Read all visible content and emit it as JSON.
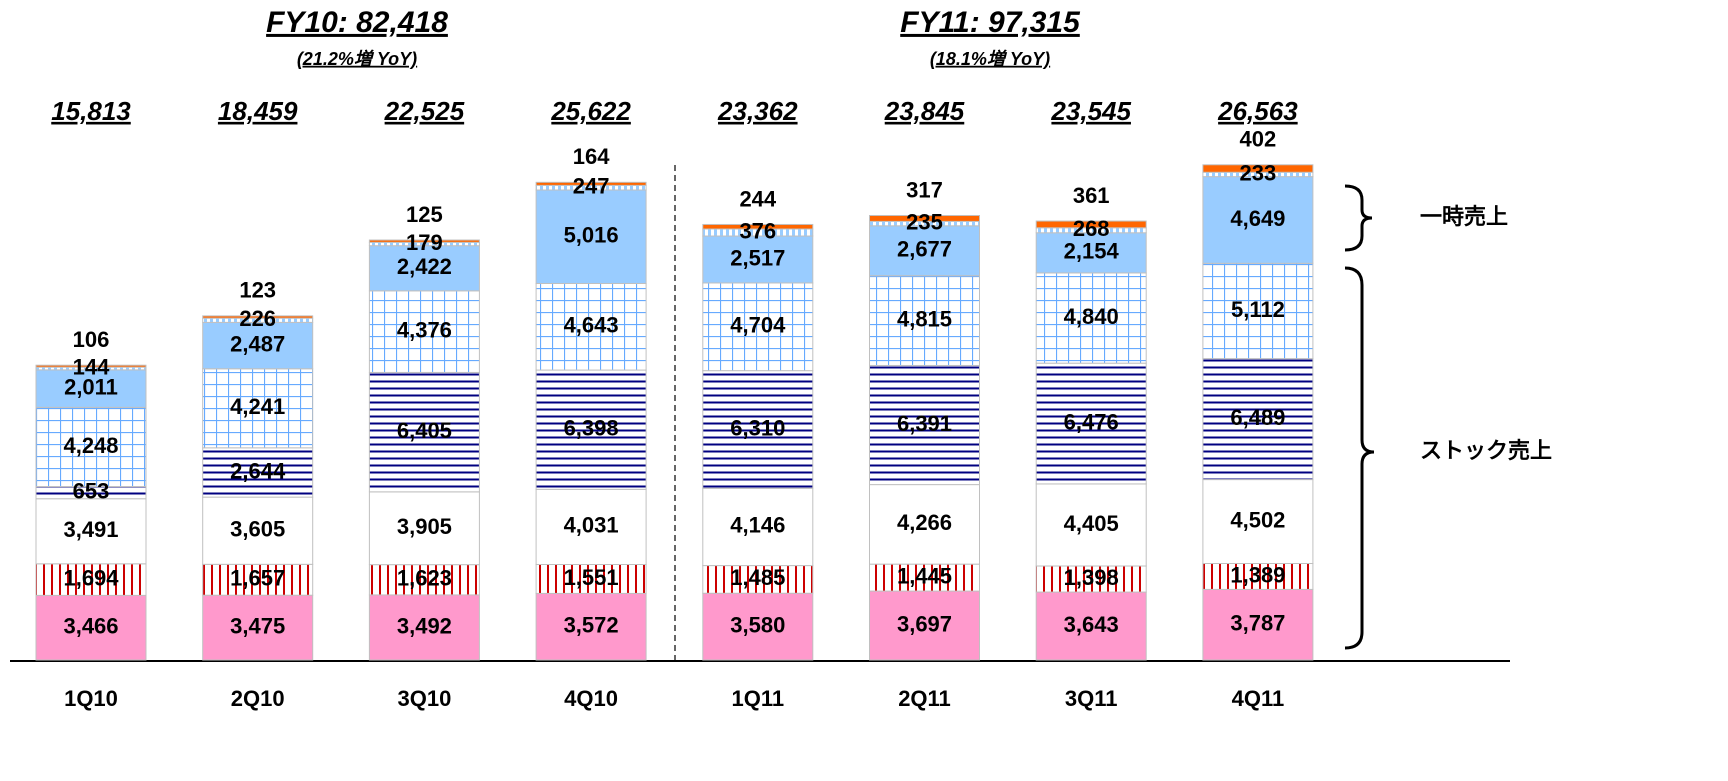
{
  "chart_data": {
    "type": "stacked_bar",
    "categories": [
      "1Q10",
      "2Q10",
      "3Q10",
      "4Q10",
      "1Q11",
      "2Q11",
      "3Q11",
      "4Q11"
    ],
    "ylim": [
      0,
      28000
    ],
    "annotations": [
      "FY10: 82,418",
      "(21.2%増 YoY)",
      "FY11: 97,315",
      "(18.1%増 YoY)",
      "一時売上",
      "ストック売上"
    ],
    "totals": [
      15813,
      18459,
      22525,
      25622,
      23362,
      23845,
      23545,
      26563
    ],
    "total_labels": [
      "15,813",
      "18,459",
      "22,525",
      "25,622",
      "23,362",
      "23,845",
      "23,545",
      "26,563"
    ],
    "series": [
      {
        "color": "#ff99cc",
        "pattern": "solid",
        "values": [
          3466,
          3475,
          3492,
          3572,
          3580,
          3697,
          3643,
          3787
        ],
        "value_labels": [
          "3,466",
          "3,475",
          "3,492",
          "3,572",
          "3,580",
          "3,697",
          "3,643",
          "3,787"
        ]
      },
      {
        "color": "#cc0000",
        "pattern": "vertical-stripes",
        "values": [
          1694,
          1657,
          1623,
          1551,
          1485,
          1445,
          1398,
          1389
        ],
        "value_labels": [
          "1,694",
          "1,657",
          "1,623",
          "1,551",
          "1,485",
          "1,445",
          "1,398",
          "1,389"
        ]
      },
      {
        "color": "#ffffff",
        "pattern": "solid",
        "values": [
          3491,
          3605,
          3905,
          4031,
          4146,
          4266,
          4405,
          4502
        ],
        "value_labels": [
          "3,491",
          "3,605",
          "3,905",
          "4,031",
          "4,146",
          "4,266",
          "4,405",
          "4,502"
        ]
      },
      {
        "color": "#000080",
        "pattern": "horizontal-stripes",
        "values": [
          653,
          2644,
          6405,
          6398,
          6310,
          6391,
          6476,
          6489
        ],
        "value_labels": [
          "653",
          "2,644",
          "6,405",
          "6,398",
          "6,310",
          "6,391",
          "6,476",
          "6,489"
        ]
      },
      {
        "color": "#99ccff",
        "pattern": "grid",
        "values": [
          4248,
          4241,
          4376,
          4643,
          4704,
          4815,
          4840,
          5112
        ],
        "value_labels": [
          "4,248",
          "4,241",
          "4,376",
          "4,643",
          "4,704",
          "4,815",
          "4,840",
          "5,112"
        ]
      },
      {
        "color": "#99ccff",
        "pattern": "solid",
        "values": [
          2011,
          2487,
          2422,
          5016,
          2517,
          2677,
          2154,
          4649
        ],
        "value_labels": [
          "2,011",
          "2,487",
          "2,422",
          "5,016",
          "2,517",
          "2,677",
          "2,154",
          "4,649"
        ]
      },
      {
        "color": "#99ccff",
        "pattern": "dots",
        "values": [
          144,
          226,
          179,
          247,
          376,
          235,
          268,
          233
        ]
      },
      {
        "color": "#ff6600",
        "pattern": "solid",
        "values": [
          106,
          123,
          125,
          164,
          244,
          317,
          361,
          402
        ]
      }
    ]
  }
}
